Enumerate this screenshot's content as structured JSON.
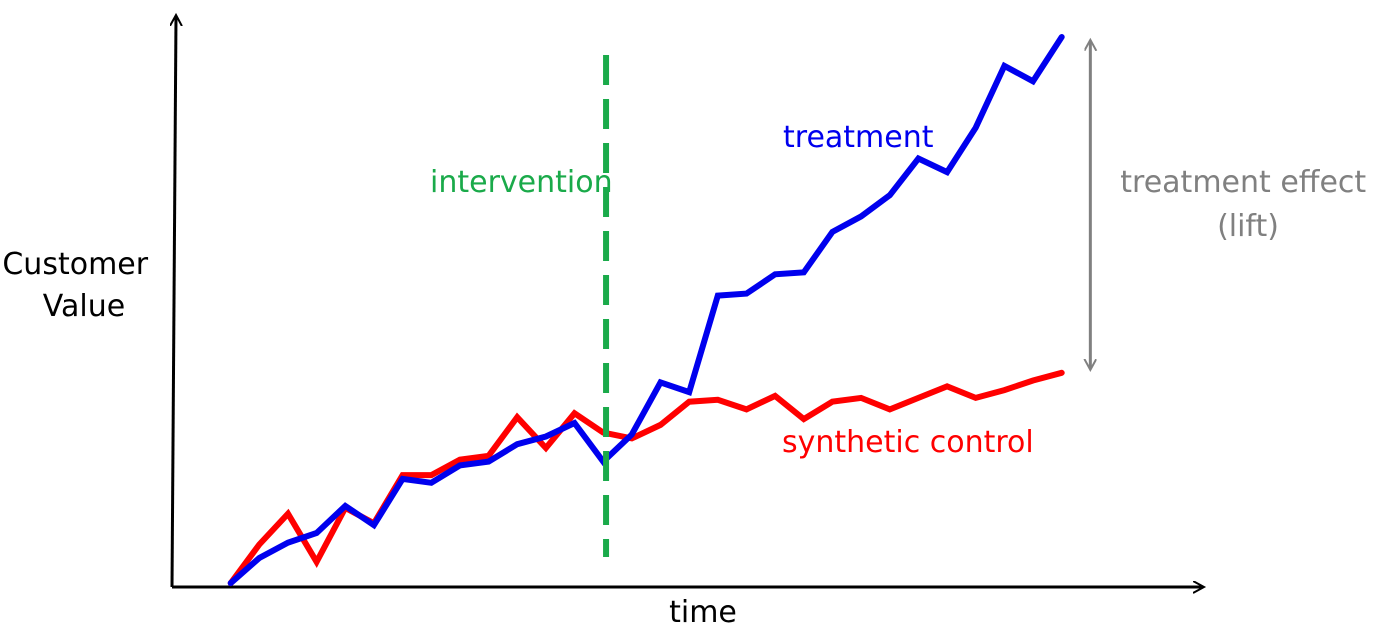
{
  "chart_data": {
    "type": "line",
    "title": "",
    "xlabel": "time",
    "ylabel_lines": [
      "Customer",
      "Value"
    ],
    "x": [
      1,
      2,
      3,
      4,
      5,
      6,
      7,
      8,
      9,
      10,
      11,
      12,
      13,
      14,
      15,
      16,
      17,
      18,
      19,
      20,
      21,
      22,
      23,
      24,
      25,
      26,
      27,
      28,
      29,
      30
    ],
    "series": [
      {
        "name": "treatment",
        "color": "#0000ee",
        "values": [
          2,
          15,
          23,
          28,
          42,
          32,
          56,
          54,
          63,
          65,
          74,
          78,
          85,
          65,
          79,
          106,
          101,
          151,
          152,
          162,
          163,
          184,
          192,
          203,
          222,
          215,
          238,
          270,
          262,
          285
        ]
      },
      {
        "name": "synthetic control",
        "color": "#ff0000",
        "values": [
          2,
          22,
          38,
          13,
          41,
          33,
          58,
          58,
          66,
          68,
          88,
          72,
          90,
          80,
          77,
          84,
          96,
          97,
          92,
          99,
          87,
          96,
          98,
          92,
          98,
          104,
          98,
          102,
          107,
          111
        ]
      }
    ],
    "xlim": [
      0,
      32
    ],
    "ylim": [
      0,
      300
    ],
    "grid": false,
    "legend": "none",
    "annotations": {
      "intervention": {
        "label": "intervention",
        "x": 14.1,
        "color": "#1aaa4a"
      },
      "effect": {
        "label_lines": [
          "treatment effect",
          "(lift)"
        ],
        "x": 31,
        "y_from": 113,
        "y_to": 283,
        "color": "#808080"
      }
    }
  }
}
